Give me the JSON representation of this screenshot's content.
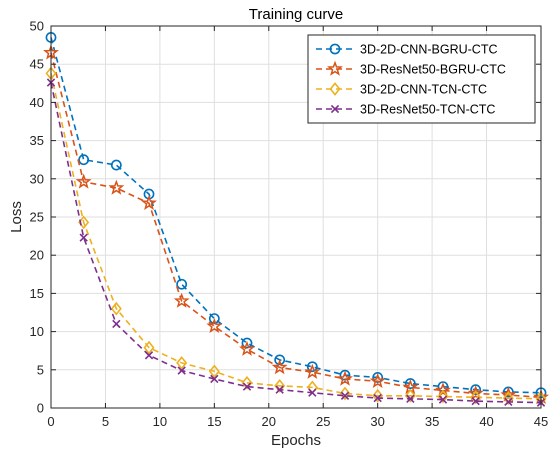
{
  "chart_data": {
    "type": "line",
    "title": "Training curve",
    "xlabel": "Epochs",
    "ylabel": "Loss",
    "xlim": [
      0,
      45
    ],
    "ylim": [
      0,
      50
    ],
    "xticks": [
      0,
      5,
      10,
      15,
      20,
      25,
      30,
      35,
      40,
      45
    ],
    "yticks": [
      0,
      5,
      10,
      15,
      20,
      25,
      30,
      35,
      40,
      45,
      50
    ],
    "grid": true,
    "legend_position": "top-right",
    "x": [
      0,
      3,
      6,
      9,
      12,
      15,
      18,
      21,
      24,
      27,
      30,
      33,
      36,
      39,
      42,
      45
    ],
    "series": [
      {
        "name": "3D-2D-CNN-BGRU-CTC",
        "color": "#0072BD",
        "marker": "circle",
        "values": [
          48.5,
          32.5,
          31.8,
          28.0,
          16.2,
          11.7,
          8.5,
          6.3,
          5.4,
          4.3,
          4.0,
          3.2,
          2.8,
          2.4,
          2.1,
          2.0
        ]
      },
      {
        "name": "3D-ResNet50-BGRU-CTC",
        "color": "#D95319",
        "marker": "star",
        "values": [
          46.5,
          29.6,
          28.8,
          26.8,
          14.0,
          10.7,
          7.7,
          5.3,
          4.7,
          3.8,
          3.5,
          2.7,
          2.3,
          1.9,
          1.7,
          1.4
        ]
      },
      {
        "name": "3D-2D-CNN-TCN-CTC",
        "color": "#EDB120",
        "marker": "diamond",
        "values": [
          43.8,
          24.3,
          13.0,
          7.9,
          5.9,
          4.8,
          3.3,
          2.9,
          2.7,
          1.9,
          1.6,
          1.6,
          1.5,
          1.4,
          1.3,
          1.2
        ]
      },
      {
        "name": "3D-ResNet50-TCN-CTC",
        "color": "#7E2F8E",
        "marker": "x",
        "values": [
          42.6,
          22.3,
          11.0,
          6.9,
          4.9,
          3.8,
          2.8,
          2.4,
          2.0,
          1.6,
          1.3,
          1.2,
          1.1,
          0.9,
          0.8,
          0.7
        ]
      }
    ]
  }
}
